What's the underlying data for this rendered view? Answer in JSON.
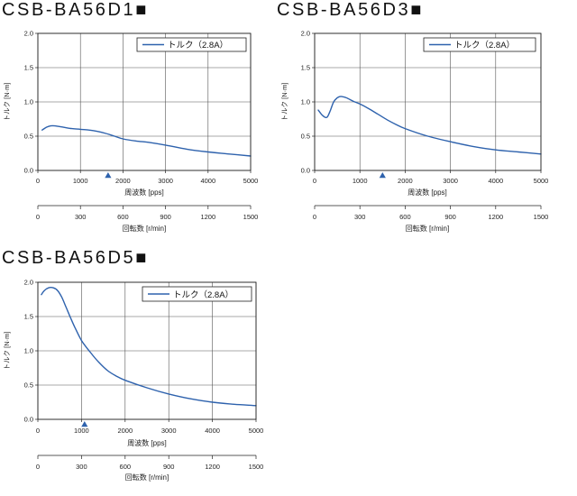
{
  "chart_data": [
    {
      "type": "line",
      "title": "CSB-BA56D1■",
      "xlabel": "周波数 [pps]",
      "ylabel": "トルク [N·m]",
      "xlim": [
        0,
        5000
      ],
      "ylim": [
        0,
        2
      ],
      "x_ticks": [
        "0",
        "1000",
        "2000",
        "3000",
        "4000",
        "5000"
      ],
      "y_ticks": [
        "0.0",
        "0.5",
        "1.0",
        "1.5",
        "2.0"
      ],
      "grid": true,
      "legend": "top-right",
      "secondary_x": {
        "label": "回転数 [r/min]",
        "range": [
          0,
          1500
        ],
        "ticks": [
          "0",
          "300",
          "600",
          "900",
          "1200",
          "1500"
        ]
      },
      "marker_x": 1650,
      "series": [
        {
          "name": "トルク（2.8A）",
          "color": "#2e62ad",
          "x": [
            100,
            200,
            300,
            400,
            600,
            800,
            1000,
            1200,
            1400,
            1600,
            1800,
            2000,
            2300,
            2600,
            3000,
            3500,
            4000,
            4500,
            5000
          ],
          "y": [
            0.59,
            0.63,
            0.65,
            0.65,
            0.63,
            0.61,
            0.6,
            0.59,
            0.57,
            0.54,
            0.5,
            0.46,
            0.43,
            0.41,
            0.37,
            0.31,
            0.27,
            0.24,
            0.21
          ]
        }
      ]
    },
    {
      "type": "line",
      "title": "CSB-BA56D3■",
      "xlabel": "周波数 [pps]",
      "ylabel": "トルク [N·m]",
      "xlim": [
        0,
        5000
      ],
      "ylim": [
        0,
        2
      ],
      "x_ticks": [
        "0",
        "1000",
        "2000",
        "3000",
        "4000",
        "5000"
      ],
      "y_ticks": [
        "0.0",
        "0.5",
        "1.0",
        "1.5",
        "2.0"
      ],
      "grid": true,
      "legend": "top-right",
      "secondary_x": {
        "label": "回転数 [r/min]",
        "range": [
          0,
          1500
        ],
        "ticks": [
          "0",
          "300",
          "600",
          "900",
          "1200",
          "1500"
        ]
      },
      "marker_x": 1500,
      "series": [
        {
          "name": "トルク（2.8A）",
          "color": "#2e62ad",
          "x": [
            80,
            150,
            220,
            280,
            350,
            420,
            500,
            580,
            700,
            850,
            1000,
            1200,
            1400,
            1600,
            1800,
            2000,
            2500,
            3000,
            3500,
            4000,
            4500,
            5000
          ],
          "y": [
            0.88,
            0.82,
            0.78,
            0.78,
            0.88,
            1.0,
            1.06,
            1.08,
            1.06,
            1.01,
            0.97,
            0.9,
            0.82,
            0.74,
            0.67,
            0.61,
            0.5,
            0.42,
            0.35,
            0.3,
            0.27,
            0.24
          ]
        }
      ]
    },
    {
      "type": "line",
      "title": "CSB-BA56D5■",
      "xlabel": "周波数 [pps]",
      "ylabel": "トルク [N·m]",
      "xlim": [
        0,
        5000
      ],
      "ylim": [
        0,
        2
      ],
      "x_ticks": [
        "0",
        "1000",
        "2000",
        "3000",
        "4000",
        "5000"
      ],
      "y_ticks": [
        "0.0",
        "0.5",
        "1.0",
        "1.5",
        "2.0"
      ],
      "grid": true,
      "legend": "top-right",
      "secondary_x": {
        "label": "回転数 [r/min]",
        "range": [
          0,
          1500
        ],
        "ticks": [
          "0",
          "300",
          "600",
          "900",
          "1200",
          "1500"
        ]
      },
      "marker_x": 1070,
      "series": [
        {
          "name": "トルク（2.8A）",
          "color": "#2e62ad",
          "x": [
            80,
            150,
            250,
            350,
            450,
            550,
            650,
            750,
            850,
            1000,
            1200,
            1400,
            1600,
            1800,
            2000,
            2500,
            3000,
            3500,
            4000,
            4500,
            5000
          ],
          "y": [
            1.82,
            1.88,
            1.92,
            1.92,
            1.88,
            1.78,
            1.63,
            1.48,
            1.34,
            1.15,
            0.98,
            0.83,
            0.71,
            0.63,
            0.57,
            0.46,
            0.37,
            0.3,
            0.25,
            0.22,
            0.2
          ]
        }
      ]
    }
  ]
}
